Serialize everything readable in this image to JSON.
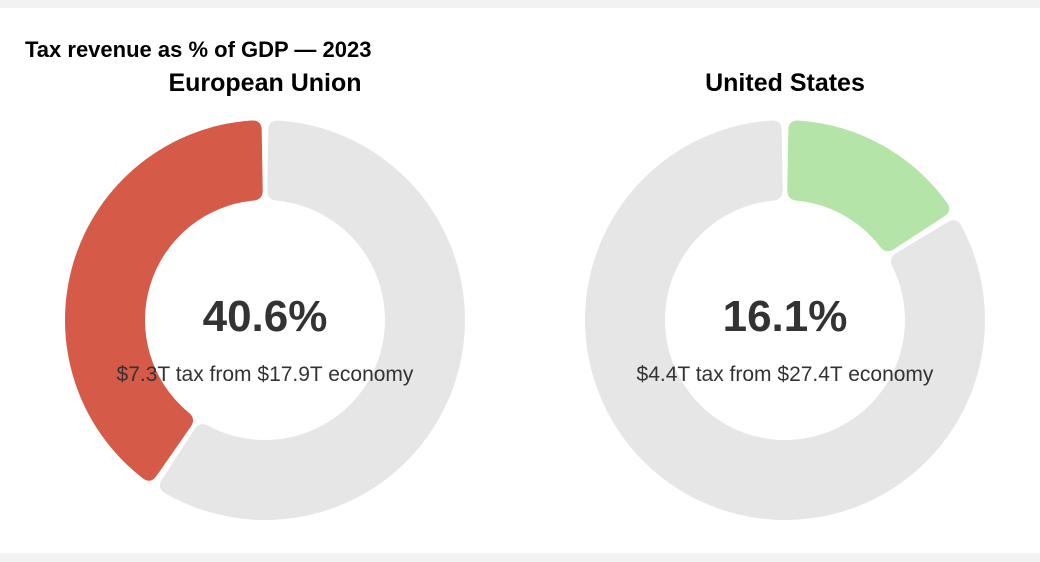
{
  "chart_data": {
    "type": "pie",
    "title": "Tax revenue as % of GDP — 2023",
    "track_color": "#e6e6e6",
    "charts": [
      {
        "label": "European Union",
        "percent": 40.6,
        "percent_label": "40.6%",
        "tax_trillions": 7.3,
        "gdp_trillions": 17.9,
        "subtitle": "$7.3T tax from $17.9T economy",
        "color": "#d65a48"
      },
      {
        "label": "United States",
        "percent": 16.1,
        "percent_label": "16.1%",
        "tax_trillions": 4.4,
        "gdp_trillions": 27.4,
        "subtitle": "$4.4T tax from $27.4T economy",
        "color": "#b5e4a8"
      }
    ]
  }
}
